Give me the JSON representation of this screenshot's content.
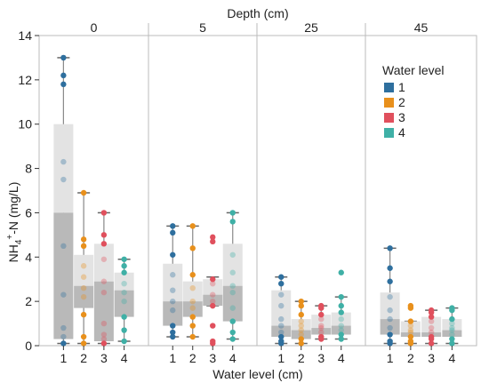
{
  "chart_data": {
    "type": "box",
    "title": "Depth (cm)",
    "xlabel": "Water level (cm)",
    "ylabel_main": "NH",
    "ylabel_sub": "4",
    "ylabel_sup": "+",
    "ylabel_rest": "-N (mg/L)",
    "ylim": [
      0,
      14
    ],
    "yticks": [
      0,
      2,
      4,
      6,
      8,
      10,
      12,
      14
    ],
    "grid": false,
    "legend_title": "Water level",
    "legend_position": "top-right",
    "categories": [
      "1",
      "2",
      "3",
      "4"
    ],
    "series": [
      {
        "name": "1",
        "color": "#2e6f9e"
      },
      {
        "name": "2",
        "color": "#e8901c"
      },
      {
        "name": "3",
        "color": "#e0505d"
      },
      {
        "name": "4",
        "color": "#3fb0a6"
      }
    ],
    "panels": [
      {
        "label": "0",
        "boxes": [
          {
            "category": "1",
            "min": 0.1,
            "q1": 0.3,
            "median": 6.0,
            "q3": 10.0,
            "max": 13.0,
            "points": [
              13.0,
              12.2,
              11.8,
              8.3,
              7.5,
              4.5,
              2.3,
              0.8,
              0.4,
              0.1
            ]
          },
          {
            "category": "2",
            "min": 0.1,
            "q1": 1.7,
            "median": 2.7,
            "q3": 4.1,
            "max": 6.9,
            "points": [
              6.9,
              4.8,
              4.5,
              3.6,
              3.1,
              2.6,
              2.2,
              1.4,
              0.4,
              0.1
            ]
          },
          {
            "category": "3",
            "min": 0.1,
            "q1": 0.2,
            "median": 2.9,
            "q3": 4.6,
            "max": 6.0,
            "points": [
              6.0,
              5.0,
              4.6,
              3.9,
              2.9,
              2.4,
              1.0,
              0.5,
              0.3,
              0.1
            ]
          },
          {
            "category": "4",
            "min": 0.2,
            "q1": 1.3,
            "median": 2.5,
            "q3": 3.3,
            "max": 3.9,
            "points": [
              3.9,
              3.6,
              3.3,
              2.8,
              2.4,
              2.0,
              1.3,
              0.7,
              0.2
            ]
          }
        ]
      },
      {
        "label": "5",
        "boxes": [
          {
            "category": "1",
            "min": 0.4,
            "q1": 0.9,
            "median": 2.0,
            "q3": 3.7,
            "max": 5.4,
            "points": [
              5.4,
              5.1,
              4.1,
              3.2,
              2.5,
              2.0,
              1.6,
              0.9,
              0.6,
              0.4
            ]
          },
          {
            "category": "2",
            "min": 0.4,
            "q1": 1.3,
            "median": 2.0,
            "q3": 2.9,
            "max": 5.4,
            "points": [
              5.4,
              4.4,
              3.2,
              2.6,
              2.0,
              1.7,
              1.3,
              0.9,
              0.4
            ]
          },
          {
            "category": "3",
            "min": 1.8,
            "q1": 1.8,
            "median": 2.3,
            "q3": 3.0,
            "max": 3.1,
            "points": [
              4.9,
              4.7,
              3.0,
              2.8,
              2.3,
              2.0,
              1.8,
              0.9,
              0.2,
              0.1
            ]
          },
          {
            "category": "4",
            "min": 0.3,
            "q1": 1.1,
            "median": 2.7,
            "q3": 4.6,
            "max": 6.0,
            "points": [
              6.0,
              5.6,
              4.1,
              3.3,
              2.7,
              2.4,
              1.7,
              1.1,
              0.6,
              0.3
            ]
          }
        ]
      },
      {
        "label": "25",
        "boxes": [
          {
            "category": "1",
            "min": 0.1,
            "q1": 0.4,
            "median": 0.9,
            "q3": 2.5,
            "max": 3.1,
            "points": [
              3.1,
              2.8,
              2.3,
              1.8,
              1.2,
              0.9,
              0.6,
              0.4,
              0.2,
              0.1
            ]
          },
          {
            "category": "2",
            "min": 0.1,
            "q1": 0.3,
            "median": 0.7,
            "q3": 1.2,
            "max": 2.0,
            "points": [
              2.0,
              1.8,
              1.4,
              1.1,
              0.9,
              0.7,
              0.5,
              0.3,
              0.1
            ]
          },
          {
            "category": "3",
            "min": 0.3,
            "q1": 0.5,
            "median": 0.8,
            "q3": 1.4,
            "max": 1.8,
            "points": [
              1.8,
              1.7,
              1.4,
              1.2,
              0.9,
              0.8,
              0.6,
              0.4,
              0.3
            ]
          },
          {
            "category": "4",
            "min": 0.3,
            "q1": 0.5,
            "median": 0.9,
            "q3": 1.5,
            "max": 2.2,
            "points": [
              3.3,
              2.2,
              1.8,
              1.5,
              1.2,
              0.9,
              0.7,
              0.5,
              0.3
            ]
          }
        ]
      },
      {
        "label": "45",
        "boxes": [
          {
            "category": "1",
            "min": 0.1,
            "q1": 0.5,
            "median": 1.2,
            "q3": 2.4,
            "max": 4.4,
            "points": [
              4.4,
              3.5,
              2.9,
              2.2,
              1.6,
              1.2,
              0.8,
              0.5,
              0.2,
              0.1
            ]
          },
          {
            "category": "2",
            "min": 0.1,
            "q1": 0.4,
            "median": 0.6,
            "q3": 1.1,
            "max": 1.1,
            "points": [
              1.8,
              1.7,
              1.1,
              0.9,
              0.7,
              0.6,
              0.4,
              0.2,
              0.1
            ]
          },
          {
            "category": "3",
            "min": 0.1,
            "q1": 0.4,
            "median": 0.6,
            "q3": 1.3,
            "max": 1.6,
            "points": [
              1.6,
              1.5,
              1.3,
              1.1,
              0.8,
              0.6,
              0.4,
              0.3,
              0.1
            ]
          },
          {
            "category": "4",
            "min": 0.1,
            "q1": 0.4,
            "median": 0.7,
            "q3": 1.2,
            "max": 1.7,
            "points": [
              1.7,
              1.6,
              1.2,
              1.0,
              0.8,
              0.7,
              0.5,
              0.3,
              0.1
            ]
          }
        ]
      }
    ]
  }
}
